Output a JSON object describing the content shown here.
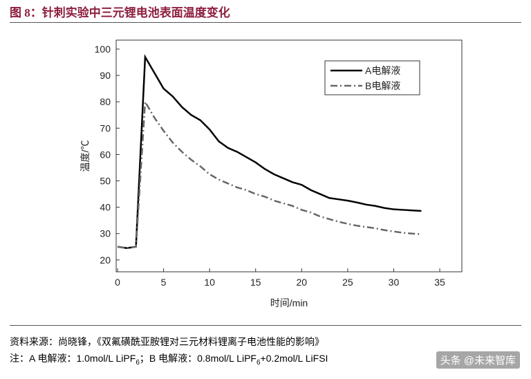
{
  "header": {
    "title": "图 8：针刺实验中三元锂电池表面温度变化"
  },
  "chart_data": {
    "type": "line",
    "x_label": "时间/min",
    "y_label": "温度/℃",
    "x": [
      0,
      1,
      2,
      3,
      4,
      5,
      6,
      7,
      8,
      9,
      10,
      11,
      12,
      13,
      14,
      15,
      16,
      17,
      18,
      19,
      20,
      21,
      22,
      23,
      24,
      25,
      26,
      27,
      28,
      29,
      30,
      31,
      32,
      33
    ],
    "series": [
      {
        "name": "A电解液",
        "color": "#000000",
        "dash": "none",
        "values": [
          25,
          24.5,
          25,
          97,
          91,
          85,
          82,
          78,
          75,
          73,
          69.5,
          65,
          62.5,
          61,
          59,
          57,
          54.5,
          52.5,
          51,
          49.5,
          48.5,
          46.5,
          45,
          43.5,
          43,
          42.5,
          41.8,
          41,
          40.5,
          39.7,
          39.2,
          39,
          38.8,
          38.6
        ]
      },
      {
        "name": "B电解液",
        "color": "#666666",
        "dash": "10 4 2 4",
        "values": [
          25,
          24.5,
          25,
          80,
          74,
          69,
          64.5,
          61,
          58,
          55.5,
          52.5,
          50.5,
          49,
          47.5,
          46.5,
          45,
          44,
          42.5,
          41.5,
          40.5,
          39,
          38,
          36.5,
          35.5,
          34.5,
          33.7,
          33,
          32.5,
          32,
          31.3,
          30.8,
          30.3,
          30,
          29.8
        ]
      }
    ],
    "xlim": [
      -0.15,
      37.4
    ],
    "ylim": [
      15.5,
      103.4
    ],
    "xticks": [
      0,
      5,
      10,
      15,
      20,
      25,
      30,
      35
    ],
    "yticks": [
      20,
      30,
      40,
      50,
      60,
      70,
      80,
      90,
      100
    ],
    "grid": false,
    "legend": "upper right"
  },
  "footer": {
    "source": "资料来源：尚晓锋，《双氟磺酰亚胺锂对三元材料锂离子电池性能的影响》",
    "note": [
      "注：A 电解液：1.0mol/L LiPF",
      "6",
      "；B 电解液：0.8mol/L LiPF",
      "6",
      "+0.2mol/L LiFSI"
    ]
  },
  "watermark": "头条 @未来智库"
}
